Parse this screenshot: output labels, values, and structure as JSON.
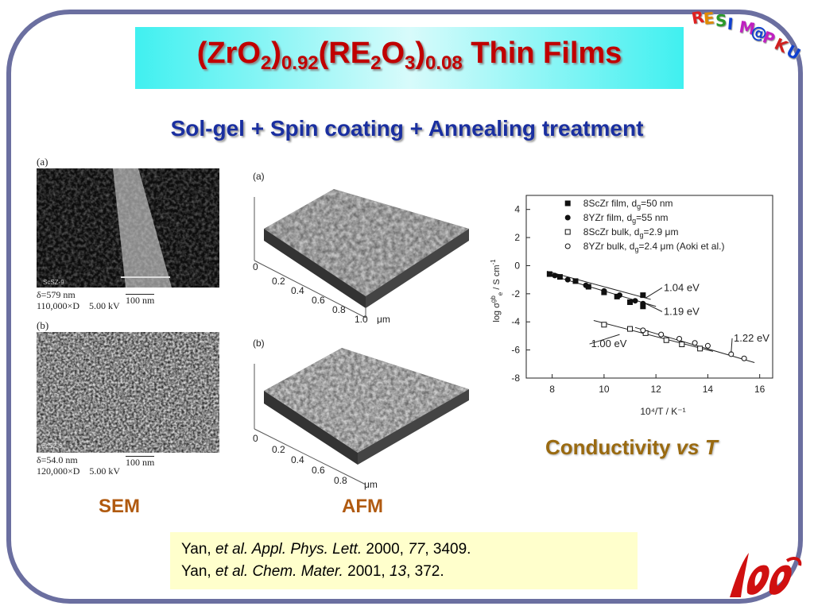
{
  "logo": {
    "letters": [
      {
        "ch": "R",
        "color": "#e02020"
      },
      {
        "ch": "E",
        "color": "#e08a00"
      },
      {
        "ch": "S",
        "color": "#2a9a2a"
      },
      {
        "ch": "I",
        "color": "#1040d0"
      },
      {
        "ch": "M",
        "color": "#c020c0"
      },
      {
        "ch": "@",
        "color": "#1040d0"
      },
      {
        "ch": "P",
        "color": "#c020c0"
      },
      {
        "ch": "K",
        "color": "#d02020"
      },
      {
        "ch": "U",
        "color": "#1040d0"
      }
    ]
  },
  "title": {
    "p1": "(ZrO",
    "s1": "2",
    "p2": ")",
    "s2": "0.92",
    "p3": "(RE",
    "s3": "2",
    "p4": "O",
    "s4": "3",
    "p5": ")",
    "s5": "0.08",
    "p6": " Thin Films"
  },
  "subtitle": "Sol-gel + Spin coating + Annealing treatment",
  "sem": {
    "a_label": "(a)",
    "a_tag": "ScSZ-9",
    "a_caption1": "δ=579 nm",
    "a_caption2": "110,000×D    5.00 kV",
    "a_scale": "100 nm",
    "b_label": "(b)",
    "b_tag": "ScSZ-9",
    "b_caption1": "δ=54.0 nm",
    "b_caption2": "120,000×D    5.00 kV",
    "b_scale": "100 nm"
  },
  "afm": {
    "a_label": "(a)",
    "b_label": "(b)",
    "z_tick": "0",
    "ticks": [
      "0.2",
      "0.4",
      "0.6",
      "0.8"
    ],
    "a_last_tick": "1.0",
    "unit": "μm"
  },
  "labels": {
    "sem": "SEM",
    "afm": "AFM",
    "conductivity_prefix": "Conductivity ",
    "conductivity_italic": "vs T"
  },
  "chart_data": {
    "type": "scatter",
    "xlabel": "10⁴/T / K⁻¹",
    "ylabel": "log σ",
    "ylabel_sup": "gb",
    "ylabel_sub": "e",
    "ylabel_rest": " / S cm",
    "ylabel_exp": "-1",
    "xlim": [
      7,
      16.5
    ],
    "ylim": [
      -8,
      5
    ],
    "xticks": [
      8,
      10,
      12,
      14,
      16
    ],
    "yticks": [
      4,
      2,
      0,
      -2,
      -4,
      -6,
      -8
    ],
    "legend_position": "top-right",
    "series": [
      {
        "name": "8ScZr film, d",
        "sub": "g",
        "rest": "=50 nm",
        "marker": "square-filled",
        "points": [
          [
            7.9,
            -0.6
          ],
          [
            8.3,
            -0.8
          ],
          [
            8.9,
            -1.1
          ],
          [
            9.4,
            -1.5
          ],
          [
            10.0,
            -1.9
          ],
          [
            10.5,
            -2.2
          ],
          [
            11.0,
            -2.6
          ],
          [
            11.5,
            -2.9
          ],
          [
            11.5,
            -2.1
          ]
        ]
      },
      {
        "name": "8YZr  film, d",
        "sub": "g",
        "rest": "=55 nm",
        "marker": "circle-filled",
        "points": [
          [
            8.1,
            -0.7
          ],
          [
            8.6,
            -1.0
          ],
          [
            9.3,
            -1.4
          ],
          [
            10.0,
            -1.8
          ],
          [
            10.6,
            -2.1
          ],
          [
            11.2,
            -2.5
          ],
          [
            11.5,
            -2.7
          ]
        ]
      },
      {
        "name": "8ScZr bulk, d",
        "sub": "g",
        "rest": "=2.9 μm",
        "marker": "square-open",
        "points": [
          [
            10.0,
            -4.2
          ],
          [
            11.0,
            -4.5
          ],
          [
            11.6,
            -4.8
          ],
          [
            12.4,
            -5.3
          ],
          [
            13.0,
            -5.6
          ],
          [
            13.7,
            -5.9
          ]
        ]
      },
      {
        "name": "8YZr bulk, d",
        "sub": "g",
        "rest": "=2.4 μm (Aoki et al.)",
        "marker": "circle-open",
        "points": [
          [
            11.5,
            -4.6
          ],
          [
            12.2,
            -4.9
          ],
          [
            12.9,
            -5.2
          ],
          [
            13.5,
            -5.5
          ],
          [
            14.0,
            -5.7
          ],
          [
            14.9,
            -6.3
          ],
          [
            15.4,
            -6.6
          ]
        ]
      }
    ],
    "fit_lines": [
      {
        "x": [
          7.8,
          11.8
        ],
        "y": [
          -0.4,
          -2.4
        ]
      },
      {
        "x": [
          7.8,
          12.0
        ],
        "y": [
          -0.6,
          -2.9
        ]
      },
      {
        "x": [
          9.6,
          14.2
        ],
        "y": [
          -3.9,
          -6.1
        ]
      },
      {
        "x": [
          11.2,
          15.8
        ],
        "y": [
          -4.4,
          -6.9
        ]
      }
    ],
    "annotations": [
      {
        "text": "1.04 eV",
        "x": 12.3,
        "y": -1.8,
        "arrow_to": [
          11.6,
          -2.3
        ]
      },
      {
        "text": "1.19 eV",
        "x": 12.3,
        "y": -3.5,
        "arrow_to": [
          11.6,
          -2.7
        ]
      },
      {
        "text": "1.00 eV",
        "x": 9.5,
        "y": -5.8,
        "arrow_to": [
          10.6,
          -4.9
        ]
      },
      {
        "text": "1.22 eV",
        "x": 15.0,
        "y": -5.4,
        "arrow_to": [
          14.9,
          -6.2
        ]
      }
    ]
  },
  "reference": {
    "l1_a": "Yan, ",
    "l1_b": "et al.",
    "l1_c": "  Appl. Phys. Lett.",
    "l1_d": " 2000, ",
    "l1_e": "77",
    "l1_f": ", 3409.",
    "l2_a": "Yan, ",
    "l2_b": "et al.",
    "l2_c": " Chem. Mater.",
    "l2_d": " 2001, ",
    "l2_e": "13",
    "l2_f": ", 372."
  }
}
